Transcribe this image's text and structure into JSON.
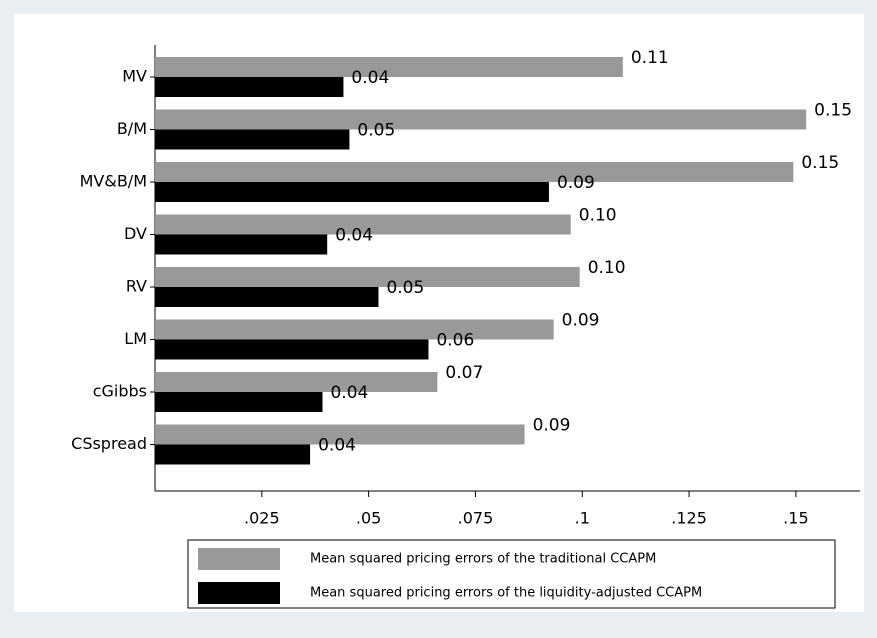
{
  "chart_data": {
    "type": "hbar",
    "categories": [
      "MV",
      "B/M",
      "MV&B/M",
      "DV",
      "RV",
      "LM",
      "cGibbs",
      "CSspread"
    ],
    "series": [
      {
        "name": "Mean squared pricing errors of the traditional CCAPM",
        "color": "#999999",
        "values": [
          0.1095,
          0.1524,
          0.1494,
          0.0973,
          0.0994,
          0.0933,
          0.0661,
          0.0865
        ],
        "value_labels": [
          "0.11",
          "0.15",
          "0.15",
          "0.10",
          "0.10",
          "0.09",
          "0.07",
          "0.09"
        ]
      },
      {
        "name": "Mean squared pricing errors of the liquidity-adjusted CCAPM",
        "color": "#000000",
        "values": [
          0.0441,
          0.0455,
          0.0922,
          0.0403,
          0.0523,
          0.064,
          0.0392,
          0.0363
        ],
        "value_labels": [
          "0.04",
          "0.05",
          "0.09",
          "0.04",
          "0.05",
          "0.06",
          "0.04",
          "0.04"
        ]
      }
    ],
    "xlim": [
      0,
      0.165
    ],
    "xticks": [
      {
        "value": 0.025,
        "label": ".025"
      },
      {
        "value": 0.05,
        "label": ".05"
      },
      {
        "value": 0.075,
        "label": ".075"
      },
      {
        "value": 0.1,
        "label": ".1"
      },
      {
        "value": 0.125,
        "label": ".125"
      },
      {
        "value": 0.15,
        "label": ".15"
      }
    ],
    "grid": false
  }
}
